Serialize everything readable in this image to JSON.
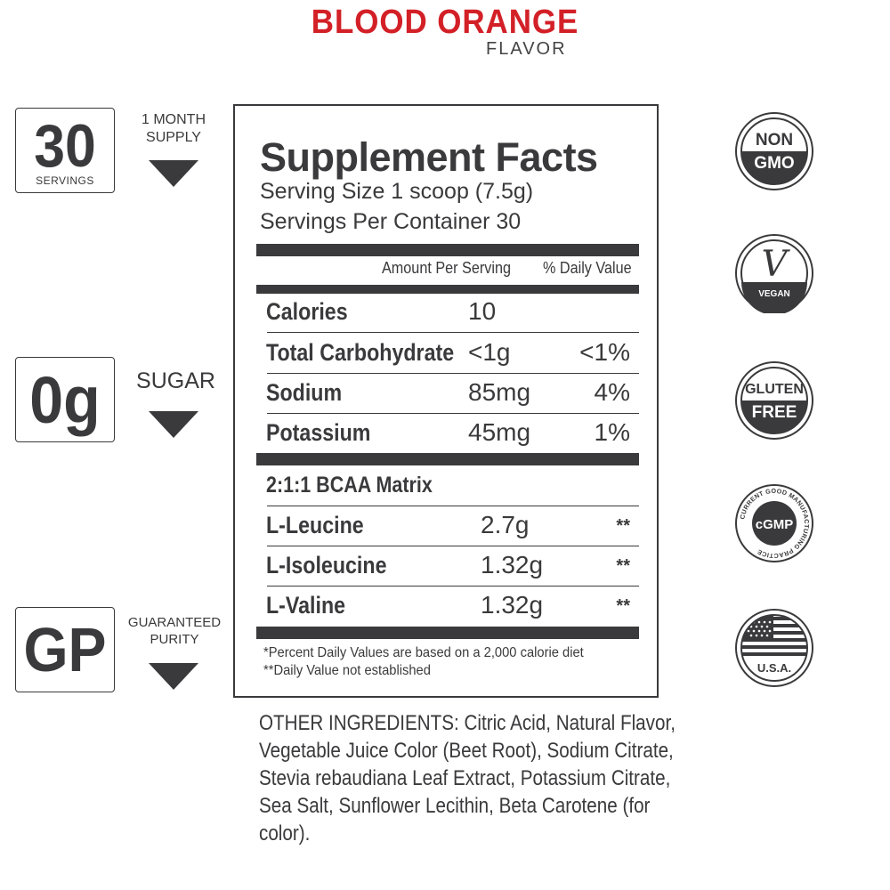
{
  "header": {
    "flavor_name": "BLOOD ORANGE",
    "flavor_label": "FLAVOR",
    "accent_color": "#d32027"
  },
  "features": [
    {
      "big": "30",
      "small": "SERVINGS",
      "caption_line1": "1 MONTH",
      "caption_line2": "SUPPLY"
    },
    {
      "big": "0g",
      "small": "",
      "caption_line1": "SUGAR",
      "caption_line2": ""
    },
    {
      "big": "GP",
      "small": "",
      "caption_line1": "GUARANTEED",
      "caption_line2": "PURITY"
    }
  ],
  "facts": {
    "title": "Supplement Facts",
    "serving_size": "Serving Size 1 scoop (7.5g)",
    "servings_per_container": "Servings Per Container 30",
    "col_amount": "Amount Per Serving",
    "col_dv": "% Daily Value",
    "nutrients": [
      {
        "name": "Calories",
        "amount": "10",
        "dv": ""
      },
      {
        "name": "Total Carbohydrate",
        "amount": "<1g",
        "dv": "<1%"
      },
      {
        "name": "Sodium",
        "amount": "85mg",
        "dv": "4%"
      },
      {
        "name": "Potassium",
        "amount": "45mg",
        "dv": "1%"
      }
    ],
    "matrix_title": "2:1:1 BCAA Matrix",
    "matrix": [
      {
        "name": "L-Leucine",
        "amount": "2.7g",
        "dv": "**"
      },
      {
        "name": "L-Isoleucine",
        "amount": "1.32g",
        "dv": "**"
      },
      {
        "name": "L-Valine",
        "amount": "1.32g",
        "dv": "**"
      }
    ],
    "footnote1": "*Percent Daily Values are based on a 2,000 calorie diet",
    "footnote2": "**Daily Value not established"
  },
  "other_ingredients": "OTHER INGREDIENTS: Citric Acid, Natural Flavor, Vegetable Juice Color (Beet Root), Sodium Citrate, Stevia rebaudiana Leaf Extract, Potassium Citrate, Sea Salt, Sunflower Lecithin, Beta Carotene (for color).",
  "badges": {
    "non_gmo_line1": "NON",
    "non_gmo_line2": "GMO",
    "vegan_glyph": "V",
    "vegan_label": "VEGAN",
    "gluten_line1": "GLUTEN",
    "gluten_line2": "FREE",
    "cgmp_label": "cGMP",
    "cgmp_ring": "CURRENT GOOD MANUFACTURING PRACTICE",
    "usa_label": "U.S.A.",
    "icon_color": "#3a3a3c"
  }
}
